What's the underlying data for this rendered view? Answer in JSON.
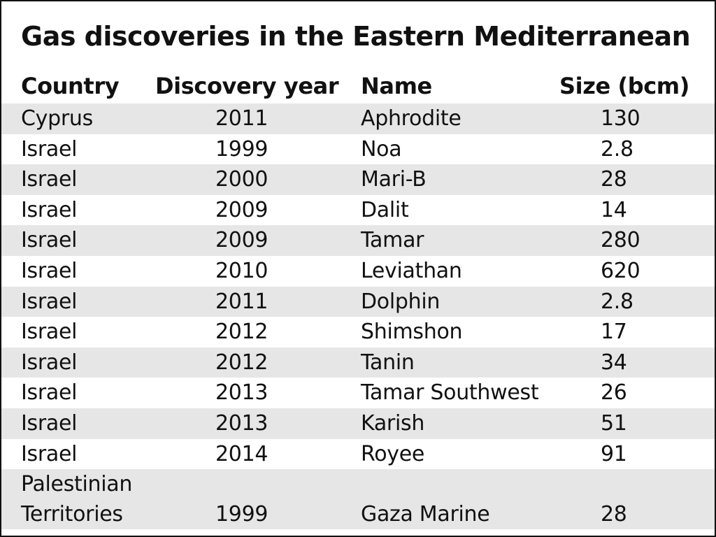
{
  "chart_data": {
    "type": "table",
    "title": "Gas discoveries in the Eastern Mediterranean",
    "columns": [
      "Country",
      "Discovery year",
      "Name",
      "Size (bcm)"
    ],
    "rows": [
      {
        "country": "Cyprus",
        "year": "2011",
        "name": "Aphrodite",
        "size": "130"
      },
      {
        "country": "Israel",
        "year": "1999",
        "name": "Noa",
        "size": "2.8"
      },
      {
        "country": "Israel",
        "year": "2000",
        "name": "Mari-B",
        "size": "28"
      },
      {
        "country": "Israel",
        "year": "2009",
        "name": "Dalit",
        "size": "14"
      },
      {
        "country": "Israel",
        "year": "2009",
        "name": "Tamar",
        "size": "280"
      },
      {
        "country": "Israel",
        "year": "2010",
        "name": "Leviathan",
        "size": "620"
      },
      {
        "country": "Israel",
        "year": "2011",
        "name": "Dolphin",
        "size": "2.8"
      },
      {
        "country": "Israel",
        "year": "2012",
        "name": "Shimshon",
        "size": "17"
      },
      {
        "country": "Israel",
        "year": "2012",
        "name": "Tanin",
        "size": "34"
      },
      {
        "country": "Israel",
        "year": "2013",
        "name": "Tamar Southwest",
        "size": "26"
      },
      {
        "country": "Israel",
        "year": "2013",
        "name": "Karish",
        "size": "51"
      },
      {
        "country": "Israel",
        "year": "2014",
        "name": "Royee",
        "size": "91"
      },
      {
        "country": "Palestinian\nTerritories",
        "year": "1999",
        "name": "Gaza Marine",
        "size": "28"
      }
    ]
  },
  "colors": {
    "stripe": "#e6e6e6",
    "border": "#111111",
    "text": "#111111"
  }
}
